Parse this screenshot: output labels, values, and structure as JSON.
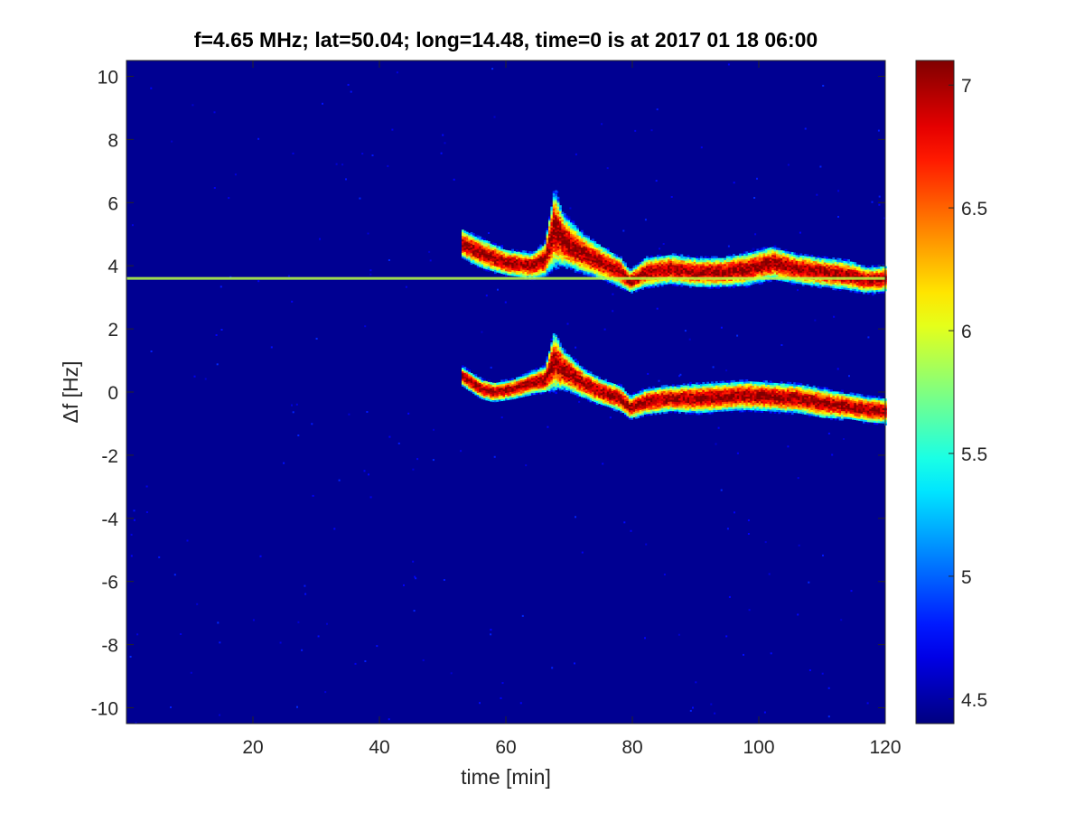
{
  "chart_data": {
    "type": "heatmap",
    "title": "f=4.65 MHz;  lat=50.04; long=14.48, time=0 is at 2017 01 18 06:00",
    "xlabel": "time [min]",
    "ylabel": "Δf [Hz]",
    "xlim": [
      0,
      120
    ],
    "ylim": [
      -10.5,
      10.5
    ],
    "xticks": [
      "20",
      "40",
      "60",
      "80",
      "100",
      "120"
    ],
    "yticks": [
      "10",
      "8",
      "6",
      "4",
      "2",
      "0",
      "-2",
      "-4",
      "-6",
      "-8",
      "-10"
    ],
    "colorbar": {
      "colormap": "jet",
      "range": [
        4.4,
        7.1
      ],
      "ticks": [
        "4.5",
        "5",
        "5.5",
        "6",
        "6.5",
        "7"
      ]
    },
    "background_value": 4.45,
    "constant_line": {
      "y": 3.6,
      "x_start": 0,
      "x_end": 120,
      "value": 5.9
    },
    "traces": [
      {
        "name": "upper",
        "x": [
          53,
          56,
          60,
          64,
          66,
          67.5,
          69,
          72,
          75,
          78,
          79.5,
          82,
          86,
          90,
          94,
          98,
          102,
          106,
          110,
          114,
          117,
          120
        ],
        "y": [
          4.7,
          4.4,
          4.1,
          4.0,
          4.2,
          5.2,
          4.8,
          4.4,
          4.1,
          3.8,
          3.5,
          3.8,
          3.9,
          3.8,
          3.8,
          3.9,
          4.1,
          3.9,
          3.8,
          3.7,
          3.55,
          3.6
        ],
        "spread": [
          0.45,
          0.45,
          0.4,
          0.4,
          0.5,
          1.2,
          0.8,
          0.6,
          0.5,
          0.45,
          0.35,
          0.45,
          0.45,
          0.45,
          0.45,
          0.5,
          0.5,
          0.45,
          0.45,
          0.45,
          0.4,
          0.4
        ]
      },
      {
        "name": "lower",
        "x": [
          53,
          56,
          58,
          61,
          64,
          66,
          67.5,
          69,
          72,
          75,
          78,
          79.5,
          82,
          86,
          90,
          94,
          98,
          102,
          106,
          110,
          114,
          117,
          120
        ],
        "y": [
          0.5,
          0.1,
          0.0,
          0.1,
          0.3,
          0.4,
          1.0,
          0.7,
          0.3,
          0.0,
          -0.2,
          -0.5,
          -0.3,
          -0.2,
          -0.2,
          -0.15,
          -0.1,
          -0.15,
          -0.2,
          -0.35,
          -0.45,
          -0.55,
          -0.6
        ],
        "spread": [
          0.3,
          0.3,
          0.3,
          0.3,
          0.35,
          0.4,
          0.9,
          0.6,
          0.45,
          0.4,
          0.4,
          0.35,
          0.4,
          0.4,
          0.45,
          0.45,
          0.45,
          0.45,
          0.45,
          0.45,
          0.4,
          0.4,
          0.4
        ]
      }
    ]
  }
}
